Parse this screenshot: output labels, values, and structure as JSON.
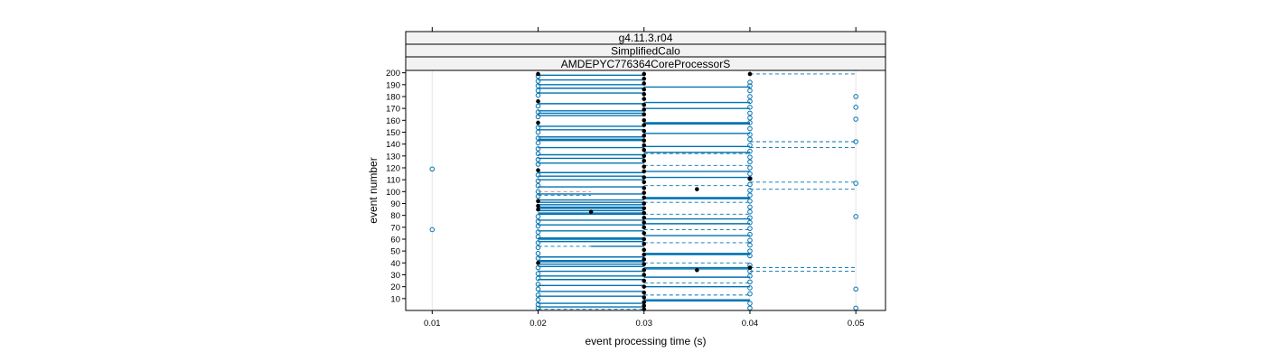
{
  "chart_data": {
    "type": "scatter",
    "strips": [
      "g4.11.3.r04",
      "SimplifiedCalo",
      "AMDEPYC776364CoreProcessorS"
    ],
    "xlabel": "event processing time (s)",
    "ylabel": "event number",
    "xlim": [
      0.0075,
      0.0528
    ],
    "ylim": [
      0,
      202
    ],
    "x_ticks": [
      0.01,
      0.02,
      0.03,
      0.04,
      0.05
    ],
    "x_tick_labels": [
      "0.01",
      "0.02",
      "0.03",
      "0.04",
      "0.05"
    ],
    "y_ticks": [
      10,
      20,
      30,
      40,
      50,
      60,
      70,
      80,
      90,
      100,
      110,
      120,
      130,
      140,
      150,
      160,
      170,
      180,
      190,
      200
    ],
    "y_tick_labels": [
      "10",
      "20",
      "30",
      "40",
      "50",
      "60",
      "70",
      "80",
      "90",
      "100",
      "110",
      "120",
      "130",
      "140",
      "150",
      "160",
      "170",
      "180",
      "190",
      "200"
    ],
    "grid_x": [
      0.01,
      0.02,
      0.03,
      0.04,
      0.05
    ],
    "colors": {
      "series_open": "#0072b2",
      "series_filled": "#000000",
      "grid": "#e6e6e6",
      "strip_bg": "#f2f2f2",
      "dashed_red": "#e07070"
    },
    "series": [
      {
        "marker": "open-circle",
        "points": [
          {
            "x": 0.01,
            "y": 68
          },
          {
            "x": 0.01,
            "y": 119
          },
          {
            "x": 0.05,
            "y": 2
          },
          {
            "x": 0.05,
            "y": 18
          },
          {
            "x": 0.05,
            "y": 79
          },
          {
            "x": 0.05,
            "y": 107
          },
          {
            "x": 0.05,
            "y": 142
          },
          {
            "x": 0.05,
            "y": 161
          },
          {
            "x": 0.05,
            "y": 171
          },
          {
            "x": 0.05,
            "y": 180
          },
          {
            "x": 0.02,
            "y": 2
          },
          {
            "x": 0.02,
            "y": 5
          },
          {
            "x": 0.02,
            "y": 9
          },
          {
            "x": 0.02,
            "y": 13
          },
          {
            "x": 0.02,
            "y": 18
          },
          {
            "x": 0.02,
            "y": 22
          },
          {
            "x": 0.02,
            "y": 27
          },
          {
            "x": 0.02,
            "y": 31
          },
          {
            "x": 0.02,
            "y": 36
          },
          {
            "x": 0.02,
            "y": 44
          },
          {
            "x": 0.02,
            "y": 48
          },
          {
            "x": 0.02,
            "y": 53
          },
          {
            "x": 0.02,
            "y": 57
          },
          {
            "x": 0.02,
            "y": 62
          },
          {
            "x": 0.02,
            "y": 66
          },
          {
            "x": 0.02,
            "y": 71
          },
          {
            "x": 0.02,
            "y": 75
          },
          {
            "x": 0.02,
            "y": 79
          },
          {
            "x": 0.02,
            "y": 96
          },
          {
            "x": 0.02,
            "y": 100
          },
          {
            "x": 0.02,
            "y": 105
          },
          {
            "x": 0.02,
            "y": 109
          },
          {
            "x": 0.02,
            "y": 114
          },
          {
            "x": 0.02,
            "y": 123
          },
          {
            "x": 0.02,
            "y": 127
          },
          {
            "x": 0.02,
            "y": 132
          },
          {
            "x": 0.02,
            "y": 136
          },
          {
            "x": 0.02,
            "y": 141
          },
          {
            "x": 0.02,
            "y": 145
          },
          {
            "x": 0.02,
            "y": 150
          },
          {
            "x": 0.02,
            "y": 154
          },
          {
            "x": 0.02,
            "y": 163
          },
          {
            "x": 0.02,
            "y": 167
          },
          {
            "x": 0.02,
            "y": 172
          },
          {
            "x": 0.02,
            "y": 181
          },
          {
            "x": 0.02,
            "y": 185
          },
          {
            "x": 0.02,
            "y": 189
          },
          {
            "x": 0.02,
            "y": 193
          },
          {
            "x": 0.02,
            "y": 197
          },
          {
            "x": 0.04,
            "y": 2
          },
          {
            "x": 0.04,
            "y": 6
          },
          {
            "x": 0.04,
            "y": 14
          },
          {
            "x": 0.04,
            "y": 19
          },
          {
            "x": 0.04,
            "y": 24
          },
          {
            "x": 0.04,
            "y": 29
          },
          {
            "x": 0.04,
            "y": 33
          },
          {
            "x": 0.04,
            "y": 38
          },
          {
            "x": 0.04,
            "y": 46
          },
          {
            "x": 0.04,
            "y": 50
          },
          {
            "x": 0.04,
            "y": 55
          },
          {
            "x": 0.04,
            "y": 59
          },
          {
            "x": 0.04,
            "y": 64
          },
          {
            "x": 0.04,
            "y": 69
          },
          {
            "x": 0.04,
            "y": 74
          },
          {
            "x": 0.04,
            "y": 78
          },
          {
            "x": 0.04,
            "y": 83
          },
          {
            "x": 0.04,
            "y": 87
          },
          {
            "x": 0.04,
            "y": 92
          },
          {
            "x": 0.04,
            "y": 97
          },
          {
            "x": 0.04,
            "y": 101
          },
          {
            "x": 0.04,
            "y": 106
          },
          {
            "x": 0.04,
            "y": 111
          },
          {
            "x": 0.04,
            "y": 115
          },
          {
            "x": 0.04,
            "y": 120
          },
          {
            "x": 0.04,
            "y": 125
          },
          {
            "x": 0.04,
            "y": 129
          },
          {
            "x": 0.04,
            "y": 134
          },
          {
            "x": 0.04,
            "y": 139
          },
          {
            "x": 0.04,
            "y": 144
          },
          {
            "x": 0.04,
            "y": 148
          },
          {
            "x": 0.04,
            "y": 153
          },
          {
            "x": 0.04,
            "y": 158
          },
          {
            "x": 0.04,
            "y": 162
          },
          {
            "x": 0.04,
            "y": 166
          },
          {
            "x": 0.04,
            "y": 171
          },
          {
            "x": 0.04,
            "y": 176
          },
          {
            "x": 0.04,
            "y": 180
          },
          {
            "x": 0.04,
            "y": 185
          },
          {
            "x": 0.04,
            "y": 189
          },
          {
            "x": 0.04,
            "y": 192
          }
        ]
      },
      {
        "marker": "filled-circle",
        "points": [
          {
            "x": 0.025,
            "y": 83
          },
          {
            "x": 0.035,
            "y": 102
          },
          {
            "x": 0.035,
            "y": 34
          },
          {
            "x": 0.04,
            "y": 36
          },
          {
            "x": 0.04,
            "y": 111
          },
          {
            "x": 0.04,
            "y": 199
          },
          {
            "x": 0.02,
            "y": 40
          },
          {
            "x": 0.02,
            "y": 85
          },
          {
            "x": 0.02,
            "y": 88
          },
          {
            "x": 0.02,
            "y": 92
          },
          {
            "x": 0.02,
            "y": 118
          },
          {
            "x": 0.02,
            "y": 158
          },
          {
            "x": 0.02,
            "y": 176
          },
          {
            "x": 0.02,
            "y": 199
          },
          {
            "x": 0.03,
            "y": 1
          },
          {
            "x": 0.03,
            "y": 4
          },
          {
            "x": 0.03,
            "y": 7
          },
          {
            "x": 0.03,
            "y": 11
          },
          {
            "x": 0.03,
            "y": 15
          },
          {
            "x": 0.03,
            "y": 20
          },
          {
            "x": 0.03,
            "y": 25
          },
          {
            "x": 0.03,
            "y": 30
          },
          {
            "x": 0.03,
            "y": 34
          },
          {
            "x": 0.03,
            "y": 39
          },
          {
            "x": 0.03,
            "y": 43
          },
          {
            "x": 0.03,
            "y": 47
          },
          {
            "x": 0.03,
            "y": 51
          },
          {
            "x": 0.03,
            "y": 56
          },
          {
            "x": 0.03,
            "y": 60
          },
          {
            "x": 0.03,
            "y": 65
          },
          {
            "x": 0.03,
            "y": 70
          },
          {
            "x": 0.03,
            "y": 74
          },
          {
            "x": 0.03,
            "y": 78
          },
          {
            "x": 0.03,
            "y": 82
          },
          {
            "x": 0.03,
            "y": 86
          },
          {
            "x": 0.03,
            "y": 90
          },
          {
            "x": 0.03,
            "y": 95
          },
          {
            "x": 0.03,
            "y": 99
          },
          {
            "x": 0.03,
            "y": 103
          },
          {
            "x": 0.03,
            "y": 108
          },
          {
            "x": 0.03,
            "y": 112
          },
          {
            "x": 0.03,
            "y": 117
          },
          {
            "x": 0.03,
            "y": 121
          },
          {
            "x": 0.03,
            "y": 126
          },
          {
            "x": 0.03,
            "y": 130
          },
          {
            "x": 0.03,
            "y": 135
          },
          {
            "x": 0.03,
            "y": 139
          },
          {
            "x": 0.03,
            "y": 143
          },
          {
            "x": 0.03,
            "y": 147
          },
          {
            "x": 0.03,
            "y": 151
          },
          {
            "x": 0.03,
            "y": 156
          },
          {
            "x": 0.03,
            "y": 160
          },
          {
            "x": 0.03,
            "y": 165
          },
          {
            "x": 0.03,
            "y": 169
          },
          {
            "x": 0.03,
            "y": 173
          },
          {
            "x": 0.03,
            "y": 178
          },
          {
            "x": 0.03,
            "y": 182
          },
          {
            "x": 0.03,
            "y": 186
          },
          {
            "x": 0.03,
            "y": 191
          },
          {
            "x": 0.03,
            "y": 195
          },
          {
            "x": 0.03,
            "y": 199
          }
        ]
      }
    ],
    "solid_lines": [
      {
        "x1": 0.02,
        "x2": 0.03,
        "y": 3
      },
      {
        "x1": 0.02,
        "x2": 0.03,
        "y": 6
      },
      {
        "x1": 0.02,
        "x2": 0.03,
        "y": 12
      },
      {
        "x1": 0.02,
        "x2": 0.03,
        "y": 16
      },
      {
        "x1": 0.02,
        "x2": 0.03,
        "y": 21
      },
      {
        "x1": 0.02,
        "x2": 0.03,
        "y": 26
      },
      {
        "x1": 0.02,
        "x2": 0.03,
        "y": 29
      },
      {
        "x1": 0.02,
        "x2": 0.03,
        "y": 33
      },
      {
        "x1": 0.02,
        "x2": 0.03,
        "y": 37
      },
      {
        "x1": 0.02,
        "x2": 0.03,
        "y": 39
      },
      {
        "x1": 0.02,
        "x2": 0.03,
        "y": 41
      },
      {
        "x1": 0.02,
        "x2": 0.03,
        "y": 42
      },
      {
        "x1": 0.02,
        "x2": 0.03,
        "y": 45
      },
      {
        "x1": 0.025,
        "x2": 0.03,
        "y": 54
      },
      {
        "x1": 0.02,
        "x2": 0.03,
        "y": 58
      },
      {
        "x1": 0.02,
        "x2": 0.03,
        "y": 60
      },
      {
        "x1": 0.02,
        "x2": 0.03,
        "y": 61
      },
      {
        "x1": 0.02,
        "x2": 0.03,
        "y": 67
      },
      {
        "x1": 0.02,
        "x2": 0.03,
        "y": 72
      },
      {
        "x1": 0.02,
        "x2": 0.03,
        "y": 76
      },
      {
        "x1": 0.02,
        "x2": 0.03,
        "y": 81
      },
      {
        "x1": 0.02,
        "x2": 0.03,
        "y": 82
      },
      {
        "x1": 0.02,
        "x2": 0.03,
        "y": 84
      },
      {
        "x1": 0.02,
        "x2": 0.03,
        "y": 86
      },
      {
        "x1": 0.02,
        "x2": 0.03,
        "y": 87
      },
      {
        "x1": 0.02,
        "x2": 0.03,
        "y": 89
      },
      {
        "x1": 0.02,
        "x2": 0.03,
        "y": 91
      },
      {
        "x1": 0.02,
        "x2": 0.03,
        "y": 93
      },
      {
        "x1": 0.02,
        "x2": 0.03,
        "y": 98
      },
      {
        "x1": 0.02,
        "x2": 0.03,
        "y": 104
      },
      {
        "x1": 0.02,
        "x2": 0.03,
        "y": 110
      },
      {
        "x1": 0.02,
        "x2": 0.03,
        "y": 113
      },
      {
        "x1": 0.02,
        "x2": 0.03,
        "y": 116
      },
      {
        "x1": 0.02,
        "x2": 0.03,
        "y": 124
      },
      {
        "x1": 0.02,
        "x2": 0.03,
        "y": 128
      },
      {
        "x1": 0.02,
        "x2": 0.03,
        "y": 131
      },
      {
        "x1": 0.02,
        "x2": 0.03,
        "y": 137
      },
      {
        "x1": 0.02,
        "x2": 0.03,
        "y": 143
      },
      {
        "x1": 0.02,
        "x2": 0.03,
        "y": 144
      },
      {
        "x1": 0.02,
        "x2": 0.03,
        "y": 146
      },
      {
        "x1": 0.02,
        "x2": 0.03,
        "y": 152
      },
      {
        "x1": 0.02,
        "x2": 0.03,
        "y": 155
      },
      {
        "x1": 0.02,
        "x2": 0.03,
        "y": 164
      },
      {
        "x1": 0.02,
        "x2": 0.03,
        "y": 166
      },
      {
        "x1": 0.02,
        "x2": 0.03,
        "y": 168
      },
      {
        "x1": 0.02,
        "x2": 0.03,
        "y": 174
      },
      {
        "x1": 0.02,
        "x2": 0.03,
        "y": 183
      },
      {
        "x1": 0.02,
        "x2": 0.03,
        "y": 187
      },
      {
        "x1": 0.02,
        "x2": 0.03,
        "y": 190
      },
      {
        "x1": 0.02,
        "x2": 0.03,
        "y": 194
      },
      {
        "x1": 0.02,
        "x2": 0.03,
        "y": 198
      },
      {
        "x1": 0.03,
        "x2": 0.04,
        "y": 8
      },
      {
        "x1": 0.03,
        "x2": 0.04,
        "y": 9
      },
      {
        "x1": 0.03,
        "x2": 0.04,
        "y": 20
      },
      {
        "x1": 0.03,
        "x2": 0.04,
        "y": 28
      },
      {
        "x1": 0.03,
        "x2": 0.04,
        "y": 35
      },
      {
        "x1": 0.03,
        "x2": 0.04,
        "y": 36
      },
      {
        "x1": 0.03,
        "x2": 0.04,
        "y": 47
      },
      {
        "x1": 0.03,
        "x2": 0.04,
        "y": 48
      },
      {
        "x1": 0.03,
        "x2": 0.04,
        "y": 63
      },
      {
        "x1": 0.03,
        "x2": 0.04,
        "y": 73
      },
      {
        "x1": 0.03,
        "x2": 0.04,
        "y": 77
      },
      {
        "x1": 0.03,
        "x2": 0.04,
        "y": 94
      },
      {
        "x1": 0.03,
        "x2": 0.04,
        "y": 95
      },
      {
        "x1": 0.03,
        "x2": 0.04,
        "y": 112
      },
      {
        "x1": 0.03,
        "x2": 0.04,
        "y": 117
      },
      {
        "x1": 0.03,
        "x2": 0.04,
        "y": 133
      },
      {
        "x1": 0.03,
        "x2": 0.04,
        "y": 138
      },
      {
        "x1": 0.03,
        "x2": 0.04,
        "y": 149
      },
      {
        "x1": 0.03,
        "x2": 0.04,
        "y": 157
      },
      {
        "x1": 0.03,
        "x2": 0.04,
        "y": 158
      },
      {
        "x1": 0.03,
        "x2": 0.04,
        "y": 170
      },
      {
        "x1": 0.03,
        "x2": 0.04,
        "y": 175
      },
      {
        "x1": 0.03,
        "x2": 0.04,
        "y": 188
      }
    ],
    "dashed_lines": [
      {
        "x1": 0.02,
        "x2": 0.03,
        "y": 1
      },
      {
        "x1": 0.02,
        "x2": 0.025,
        "y": 54
      },
      {
        "x1": 0.02,
        "x2": 0.025,
        "y": 97
      },
      {
        "x1": 0.03,
        "x2": 0.04,
        "y": 13
      },
      {
        "x1": 0.03,
        "x2": 0.04,
        "y": 23
      },
      {
        "x1": 0.03,
        "x2": 0.04,
        "y": 40
      },
      {
        "x1": 0.03,
        "x2": 0.04,
        "y": 57
      },
      {
        "x1": 0.03,
        "x2": 0.04,
        "y": 68
      },
      {
        "x1": 0.03,
        "x2": 0.04,
        "y": 81
      },
      {
        "x1": 0.03,
        "x2": 0.04,
        "y": 91
      },
      {
        "x1": 0.03,
        "x2": 0.04,
        "y": 105
      },
      {
        "x1": 0.03,
        "x2": 0.04,
        "y": 122
      },
      {
        "x1": 0.03,
        "x2": 0.04,
        "y": 132
      },
      {
        "x1": 0.04,
        "x2": 0.05,
        "y": 33
      },
      {
        "x1": 0.04,
        "x2": 0.05,
        "y": 36
      },
      {
        "x1": 0.04,
        "x2": 0.05,
        "y": 102
      },
      {
        "x1": 0.04,
        "x2": 0.05,
        "y": 108
      },
      {
        "x1": 0.04,
        "x2": 0.05,
        "y": 137
      },
      {
        "x1": 0.04,
        "x2": 0.05,
        "y": 142
      },
      {
        "x1": 0.04,
        "x2": 0.05,
        "y": 199
      }
    ],
    "red_dashed_lines": [
      {
        "x1": 0.02,
        "x2": 0.025,
        "y": 100
      }
    ]
  }
}
